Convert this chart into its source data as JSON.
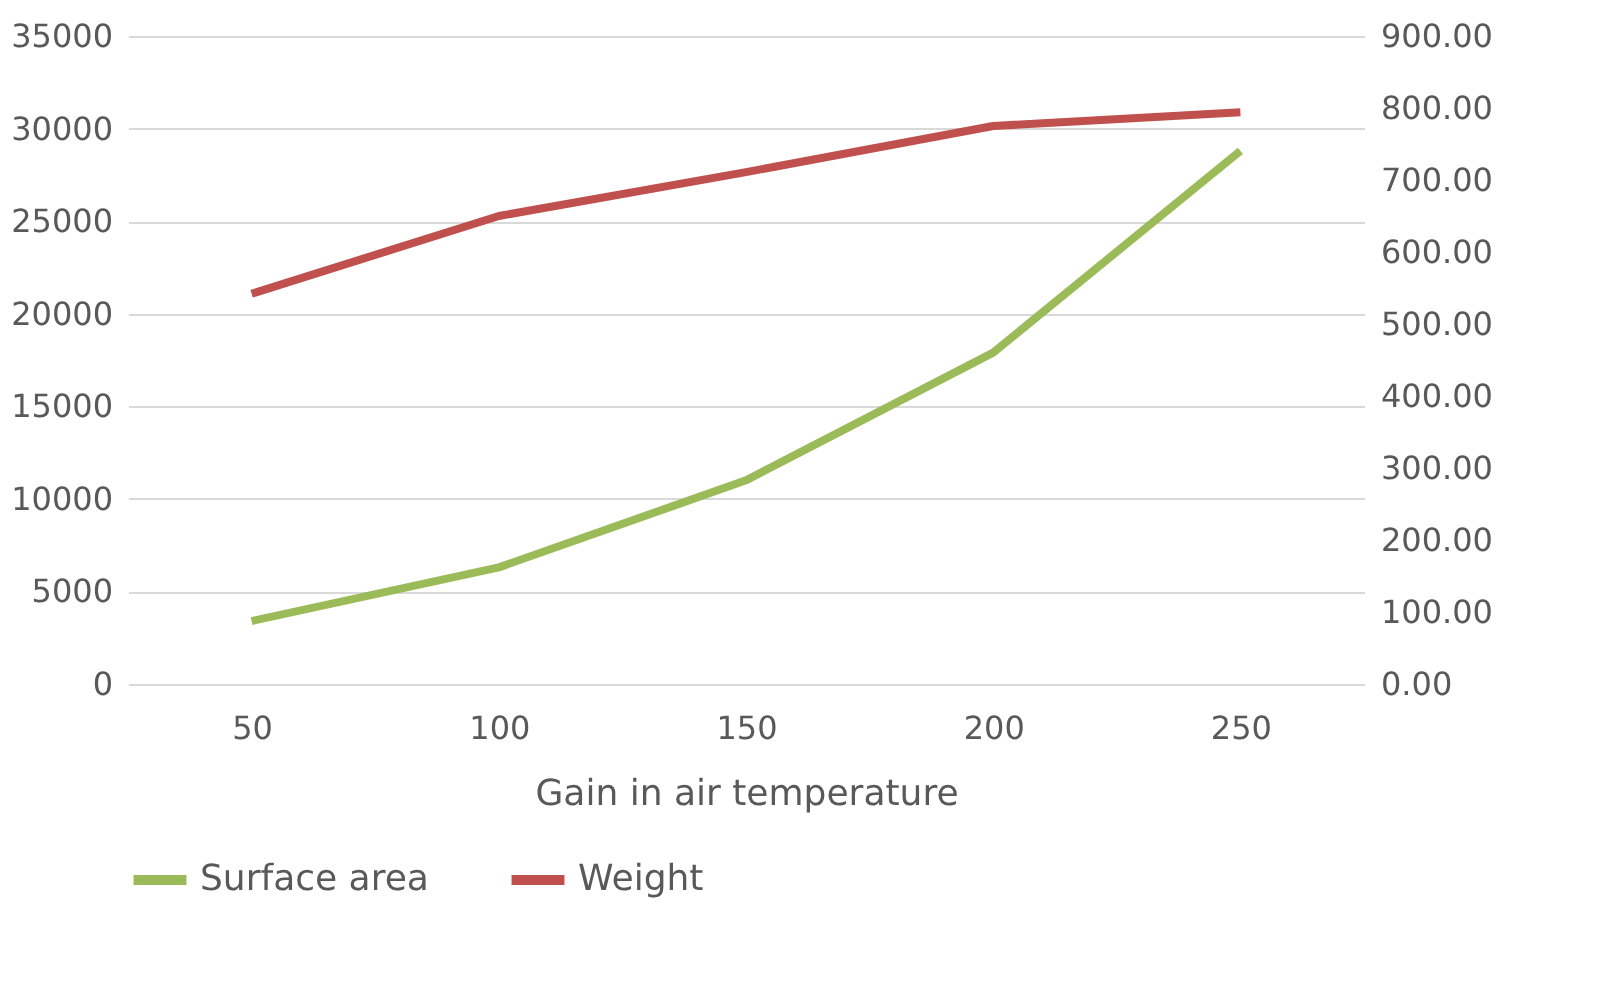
{
  "chart_data": {
    "type": "line",
    "xlabel": "Gain in air temperature",
    "categories": [
      "50",
      "100",
      "150",
      "200",
      "250"
    ],
    "series": [
      {
        "name": "Surface area",
        "color": "#9bbb59",
        "values": [
          3400,
          6300,
          11000,
          17900,
          28800
        ]
      },
      {
        "name": "Weight",
        "color": "#c0504d",
        "axis": "y2",
        "values": [
          542,
          650,
          711,
          775,
          794
        ]
      }
    ],
    "ylim": [
      0,
      35000
    ],
    "yticks": [
      0,
      5000,
      10000,
      15000,
      20000,
      25000,
      30000,
      35000
    ],
    "y2lim": [
      0,
      900
    ],
    "y2ticks": [
      {
        "value": 0,
        "label": "0.00"
      },
      {
        "value": 100,
        "label": "100.00"
      },
      {
        "value": 200,
        "label": "200.00"
      },
      {
        "value": 300,
        "label": "300.00"
      },
      {
        "value": 400,
        "label": "400.00"
      },
      {
        "value": 500,
        "label": "500.00"
      },
      {
        "value": 600,
        "label": "600.00"
      },
      {
        "value": 700,
        "label": "700.00"
      },
      {
        "value": 800,
        "label": "800.00"
      },
      {
        "value": 900,
        "label": "900.00"
      }
    ],
    "grid": "y",
    "legend": "bottom",
    "marker": "none",
    "line_style": "solid"
  }
}
